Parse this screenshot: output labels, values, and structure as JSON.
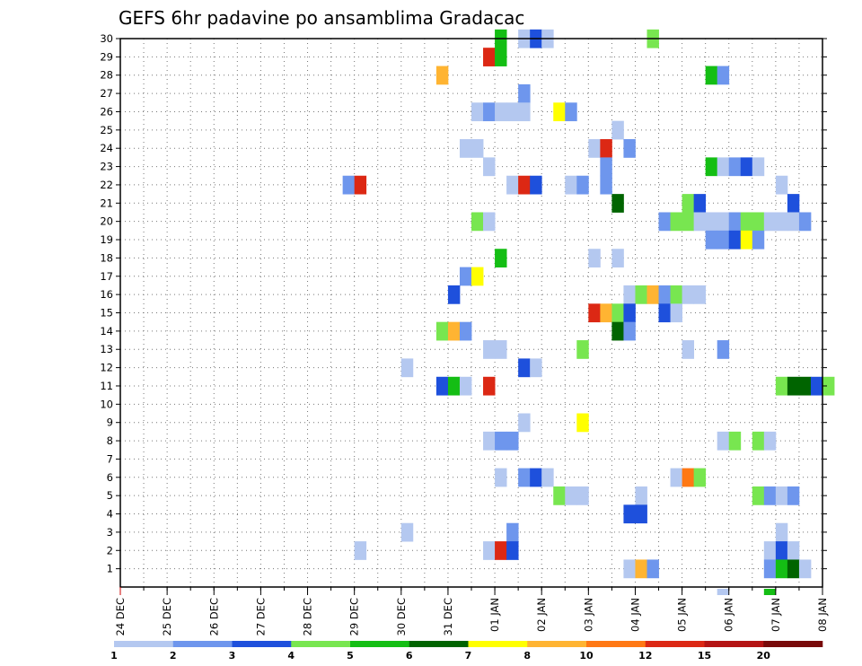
{
  "chart_data": {
    "type": "heatmap",
    "title": "GEFS 6hr padavine po ansamblima Gradacac",
    "xlabel": "",
    "ylabel": "",
    "x_tick_labels": [
      "24 DEC",
      "25 DEC",
      "26 DEC",
      "27 DEC",
      "28 DEC",
      "29 DEC",
      "30 DEC",
      "31 DEC",
      "01 JAN",
      "02 JAN",
      "03 JAN",
      "04 JAN",
      "05 JAN",
      "06 JAN",
      "07 JAN",
      "08 JAN"
    ],
    "x_range_days": [
      0,
      15
    ],
    "x_step_days": 0.25,
    "y_tick_labels": [
      "1",
      "2",
      "3",
      "4",
      "5",
      "6",
      "7",
      "8",
      "9",
      "10",
      "11",
      "12",
      "13",
      "14",
      "15",
      "16",
      "17",
      "18",
      "19",
      "20",
      "21",
      "22",
      "23",
      "24",
      "25",
      "26",
      "27",
      "28",
      "29",
      "30"
    ],
    "y_range": [
      0,
      30
    ],
    "grid": true,
    "legend_position": "bottom",
    "legend": {
      "colors": [
        "#b4c8f0",
        "#6e96ed",
        "#1e50dc",
        "#78e650",
        "#14be14",
        "#006400",
        "#ffff00",
        "#ffb432",
        "#ff7814",
        "#dc2814",
        "#b41414",
        "#780a0a"
      ],
      "labels": [
        "1",
        "2",
        "3",
        "4",
        "5",
        "6",
        "7",
        "8",
        "10",
        "12",
        "15",
        "20"
      ]
    },
    "cells_note": "each cell: [member, start_day_offset_from_24_DEC_00Z, class_index]",
    "cells": [
      [
        30,
        8.0,
        4
      ],
      [
        30,
        8.5,
        0
      ],
      [
        30,
        8.75,
        2
      ],
      [
        30,
        9.0,
        0
      ],
      [
        30,
        11.25,
        3
      ],
      [
        29,
        7.75,
        9
      ],
      [
        29,
        8.0,
        4
      ],
      [
        28,
        6.75,
        7
      ],
      [
        28,
        12.5,
        4
      ],
      [
        28,
        12.75,
        1
      ],
      [
        27,
        8.5,
        1
      ],
      [
        26,
        7.5,
        0
      ],
      [
        26,
        7.75,
        1
      ],
      [
        26,
        8.0,
        0
      ],
      [
        26,
        8.25,
        0
      ],
      [
        26,
        8.5,
        0
      ],
      [
        26,
        9.25,
        6
      ],
      [
        26,
        9.5,
        1
      ],
      [
        25,
        10.5,
        0
      ],
      [
        24,
        7.25,
        0
      ],
      [
        24,
        7.5,
        0
      ],
      [
        24,
        10.0,
        0
      ],
      [
        24,
        10.25,
        9
      ],
      [
        24,
        10.75,
        1
      ],
      [
        23,
        7.75,
        0
      ],
      [
        23,
        10.25,
        1
      ],
      [
        23,
        12.5,
        4
      ],
      [
        23,
        12.75,
        0
      ],
      [
        23,
        13.0,
        1
      ],
      [
        23,
        13.25,
        2
      ],
      [
        23,
        13.5,
        0
      ],
      [
        22,
        4.75,
        1
      ],
      [
        22,
        5.0,
        9
      ],
      [
        22,
        8.25,
        0
      ],
      [
        22,
        8.5,
        9
      ],
      [
        22,
        8.75,
        2
      ],
      [
        22,
        9.5,
        0
      ],
      [
        22,
        9.75,
        1
      ],
      [
        22,
        10.25,
        1
      ],
      [
        22,
        14.0,
        0
      ],
      [
        21,
        10.5,
        5
      ],
      [
        21,
        12.0,
        3
      ],
      [
        21,
        12.25,
        2
      ],
      [
        21,
        14.25,
        2
      ],
      [
        20,
        7.5,
        3
      ],
      [
        20,
        7.75,
        0
      ],
      [
        20,
        11.5,
        1
      ],
      [
        20,
        11.75,
        3
      ],
      [
        20,
        12.0,
        3
      ],
      [
        20,
        12.25,
        0
      ],
      [
        20,
        12.5,
        0
      ],
      [
        20,
        12.75,
        0
      ],
      [
        20,
        13.0,
        1
      ],
      [
        20,
        13.25,
        3
      ],
      [
        20,
        13.5,
        3
      ],
      [
        20,
        13.75,
        0
      ],
      [
        20,
        14.0,
        0
      ],
      [
        20,
        14.25,
        0
      ],
      [
        20,
        14.5,
        1
      ],
      [
        19,
        12.5,
        1
      ],
      [
        19,
        12.75,
        1
      ],
      [
        19,
        13.0,
        2
      ],
      [
        19,
        13.25,
        6
      ],
      [
        19,
        13.5,
        1
      ],
      [
        18,
        8.0,
        4
      ],
      [
        18,
        10.0,
        0
      ],
      [
        18,
        10.5,
        0
      ],
      [
        17,
        7.25,
        1
      ],
      [
        17,
        7.5,
        6
      ],
      [
        16,
        7.0,
        2
      ],
      [
        16,
        10.75,
        0
      ],
      [
        16,
        11.0,
        3
      ],
      [
        16,
        11.25,
        7
      ],
      [
        16,
        11.5,
        1
      ],
      [
        16,
        11.75,
        3
      ],
      [
        16,
        12.0,
        0
      ],
      [
        16,
        12.25,
        0
      ],
      [
        15,
        10.0,
        9
      ],
      [
        15,
        10.25,
        7
      ],
      [
        15,
        10.5,
        3
      ],
      [
        15,
        10.75,
        2
      ],
      [
        15,
        11.5,
        2
      ],
      [
        15,
        11.75,
        0
      ],
      [
        14,
        6.75,
        3
      ],
      [
        14,
        7.0,
        7
      ],
      [
        14,
        7.25,
        1
      ],
      [
        14,
        10.5,
        5
      ],
      [
        14,
        10.75,
        1
      ],
      [
        13,
        7.75,
        0
      ],
      [
        13,
        8.0,
        0
      ],
      [
        13,
        9.75,
        3
      ],
      [
        13,
        12.0,
        0
      ],
      [
        13,
        12.75,
        1
      ],
      [
        12,
        6.0,
        0
      ],
      [
        12,
        8.5,
        2
      ],
      [
        12,
        8.75,
        0
      ],
      [
        11,
        6.75,
        2
      ],
      [
        11,
        7.0,
        4
      ],
      [
        11,
        7.25,
        0
      ],
      [
        11,
        7.75,
        9
      ],
      [
        11,
        14.0,
        3
      ],
      [
        11,
        14.25,
        5
      ],
      [
        11,
        14.5,
        5
      ],
      [
        11,
        14.75,
        2
      ],
      [
        11,
        15.0,
        3
      ],
      [
        9,
        8.5,
        0
      ],
      [
        9,
        9.75,
        6
      ],
      [
        8,
        7.75,
        0
      ],
      [
        8,
        8.0,
        1
      ],
      [
        8,
        8.25,
        1
      ],
      [
        8,
        12.75,
        0
      ],
      [
        8,
        13.0,
        3
      ],
      [
        8,
        13.5,
        3
      ],
      [
        8,
        13.75,
        0
      ],
      [
        6,
        8.0,
        0
      ],
      [
        6,
        8.5,
        1
      ],
      [
        6,
        8.75,
        2
      ],
      [
        6,
        9.0,
        0
      ],
      [
        6,
        11.75,
        0
      ],
      [
        6,
        12.0,
        8
      ],
      [
        6,
        12.25,
        3
      ],
      [
        5,
        9.25,
        3
      ],
      [
        5,
        9.5,
        0
      ],
      [
        5,
        9.75,
        0
      ],
      [
        5,
        11.0,
        0
      ],
      [
        5,
        13.5,
        3
      ],
      [
        5,
        13.75,
        1
      ],
      [
        5,
        14.0,
        0
      ],
      [
        5,
        14.25,
        1
      ],
      [
        4,
        10.75,
        2
      ],
      [
        4,
        11.0,
        2
      ],
      [
        3,
        6.0,
        0
      ],
      [
        3,
        8.25,
        1
      ],
      [
        3,
        14.0,
        0
      ],
      [
        2,
        5.0,
        0
      ],
      [
        2,
        7.75,
        0
      ],
      [
        2,
        8.0,
        9
      ],
      [
        2,
        8.25,
        2
      ],
      [
        2,
        13.75,
        0
      ],
      [
        2,
        14.0,
        2
      ],
      [
        2,
        14.25,
        0
      ],
      [
        1,
        10.75,
        0
      ],
      [
        1,
        11.0,
        7
      ],
      [
        1,
        11.25,
        1
      ],
      [
        1,
        13.75,
        1
      ],
      [
        1,
        14.0,
        4
      ],
      [
        1,
        14.25,
        5
      ],
      [
        1,
        14.5,
        0
      ]
    ],
    "extra_marks_note": "small markers just below the frame: [start_day_offset, class_index]",
    "extra_marks": [
      [
        12.75,
        0
      ],
      [
        13.75,
        4
      ]
    ]
  }
}
